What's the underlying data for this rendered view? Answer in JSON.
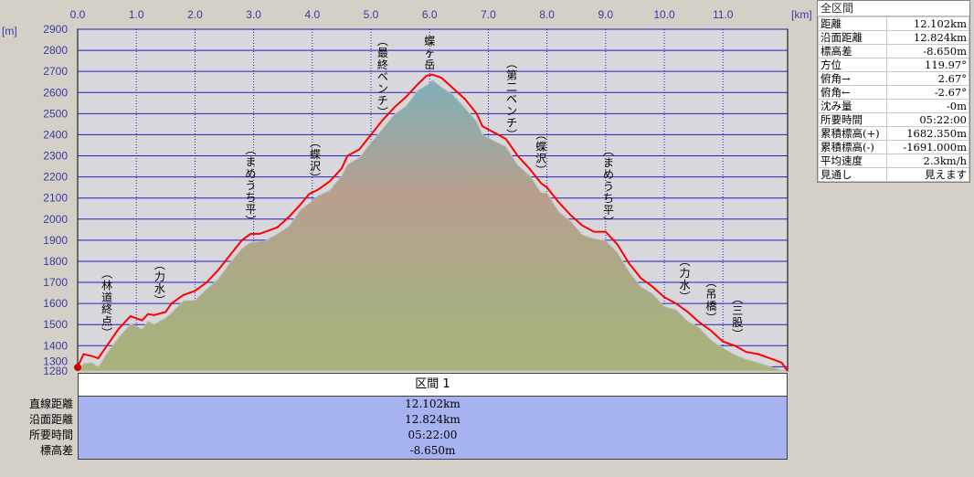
{
  "chart_data": {
    "type": "area",
    "x_unit": "[km]",
    "y_unit": "[m]",
    "xlim": [
      0,
      12.102
    ],
    "ylim": [
      1280,
      2900
    ],
    "x_ticks": [
      "0.0",
      "1.0",
      "2.0",
      "3.0",
      "4.0",
      "5.0",
      "6.0",
      "7.0",
      "8.0",
      "9.0",
      "10.0",
      "11.0"
    ],
    "y_ticks": [
      "1280",
      "1300",
      "1400",
      "1500",
      "1600",
      "1700",
      "1800",
      "1900",
      "2000",
      "2100",
      "2200",
      "2300",
      "2400",
      "2500",
      "2600",
      "2700",
      "2800",
      "2900"
    ],
    "grid": true,
    "series": [
      {
        "x": [
          0.0,
          0.1,
          0.25,
          0.35,
          0.5,
          0.7,
          0.9,
          1.0,
          1.1,
          1.2,
          1.3,
          1.5,
          1.6,
          1.8,
          2.0,
          2.2,
          2.4,
          2.6,
          2.8,
          2.95,
          3.1,
          3.2,
          3.4,
          3.6,
          3.8,
          3.95,
          4.1,
          4.3,
          4.5,
          4.6,
          4.8,
          5.0,
          5.2,
          5.4,
          5.6,
          5.8,
          5.95,
          6.05,
          6.2,
          6.4,
          6.6,
          6.8,
          6.9,
          7.1,
          7.3,
          7.5,
          7.7,
          7.9,
          8.0,
          8.2,
          8.4,
          8.6,
          8.8,
          9.0,
          9.2,
          9.4,
          9.6,
          9.8,
          10.0,
          10.2,
          10.4,
          10.6,
          10.8,
          11.0,
          11.2,
          11.4,
          11.6,
          11.8,
          12.0,
          12.102
        ],
        "y": [
          1300,
          1360,
          1350,
          1340,
          1400,
          1480,
          1540,
          1530,
          1520,
          1550,
          1545,
          1560,
          1600,
          1640,
          1660,
          1700,
          1760,
          1830,
          1900,
          1930,
          1930,
          1940,
          1960,
          2010,
          2070,
          2120,
          2140,
          2180,
          2240,
          2300,
          2330,
          2400,
          2470,
          2530,
          2580,
          2640,
          2680,
          2685,
          2670,
          2620,
          2570,
          2500,
          2440,
          2410,
          2380,
          2300,
          2240,
          2170,
          2150,
          2080,
          2020,
          1970,
          1940,
          1940,
          1880,
          1790,
          1720,
          1680,
          1630,
          1600,
          1560,
          1510,
          1470,
          1420,
          1400,
          1370,
          1360,
          1340,
          1320,
          1280
        ]
      }
    ],
    "annotations": [
      {
        "text": "(林道終点)",
        "x": 0.5
      },
      {
        "text": "(力水)",
        "x": 1.4
      },
      {
        "text": "(まめうち平)",
        "x": 2.95
      },
      {
        "text": "(蝶沢)",
        "x": 4.05
      },
      {
        "text": "(最終ベンチ)",
        "x": 5.2
      },
      {
        "text": "蝶ヶ岳",
        "x": 6.0
      },
      {
        "text": "(第二ベンチ)",
        "x": 7.4
      },
      {
        "text": "(蝶沢)",
        "x": 7.9
      },
      {
        "text": "(まめうち平)",
        "x": 9.05
      },
      {
        "text": "(力水)",
        "x": 10.35
      },
      {
        "text": "(吊橋)",
        "x": 10.8
      },
      {
        "text": "(三股)",
        "x": 11.25
      }
    ]
  },
  "side_panel": {
    "header": "全区間",
    "rows": [
      {
        "label": "距離",
        "value": "12.102km"
      },
      {
        "label": "沿面距離",
        "value": "12.824km"
      },
      {
        "label": "標高差",
        "value": "-8.650m"
      },
      {
        "label": "方位",
        "value": "119.97°"
      },
      {
        "label": "俯角→",
        "value": "2.67°"
      },
      {
        "label": "俯角←",
        "value": "-2.67°"
      },
      {
        "label": "沈み量",
        "value": "-0m"
      },
      {
        "label": "所要時間",
        "value": "05:22:00"
      },
      {
        "label": "累積標高(+)",
        "value": "1682.350m"
      },
      {
        "label": "累積標高(-)",
        "value": "-1691.000m"
      },
      {
        "label": "平均速度",
        "value": "2.3km/h"
      },
      {
        "label": "見通し",
        "value": "見えます"
      }
    ]
  },
  "section": {
    "title": "区間 1",
    "rows": [
      {
        "label": "直線距離",
        "value": "12.102km"
      },
      {
        "label": "沿面距離",
        "value": "12.824km"
      },
      {
        "label": "所要時間",
        "value": "05:22:00"
      },
      {
        "label": "標高差",
        "value": "-8.650m"
      }
    ]
  },
  "colors": {
    "profile_line": "#ff0000",
    "grid": "#2020c0",
    "plot_bg": "#d8d8dc",
    "value_bg": "#a7b3f0"
  }
}
